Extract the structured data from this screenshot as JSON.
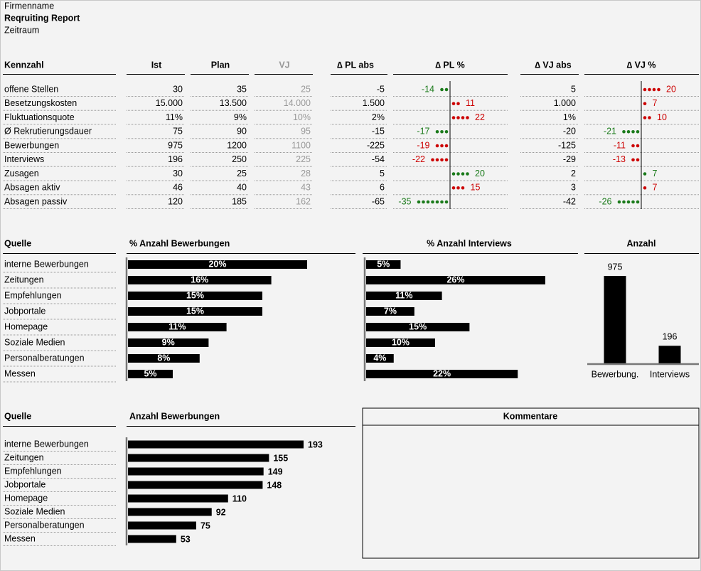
{
  "header": {
    "company": "Firmenname",
    "title": "Reqruiting Report",
    "period": "Zeitraum"
  },
  "kpi": {
    "columns": [
      "Kennzahl",
      "Ist",
      "Plan",
      "VJ",
      "∆ PL abs",
      "∆ PL %",
      "∆ VJ abs",
      "∆ VJ %"
    ],
    "rows": [
      {
        "name": "offene Stellen",
        "ist": "30",
        "plan": "35",
        "vj": "25",
        "pl_abs": "-5",
        "pl_pct": -14,
        "pl_color": "#1a7a1a",
        "vj_abs": "5",
        "vj_pct": 20,
        "vj_color": "#cc0000"
      },
      {
        "name": "Besetzungskosten",
        "ist": "15.000",
        "plan": "13.500",
        "vj": "14.000",
        "pl_abs": "1.500",
        "pl_pct": 11,
        "pl_color": "#cc0000",
        "vj_abs": "1.000",
        "vj_pct": 7,
        "vj_color": "#cc0000"
      },
      {
        "name": "Fluktuationsquote",
        "ist": "11%",
        "plan": "9%",
        "vj": "10%",
        "pl_abs": "2%",
        "pl_pct": 22,
        "pl_color": "#cc0000",
        "vj_abs": "1%",
        "vj_pct": 10,
        "vj_color": "#cc0000"
      },
      {
        "name": "Ø Rekrutierungsdauer",
        "ist": "75",
        "plan": "90",
        "vj": "95",
        "pl_abs": "-15",
        "pl_pct": -17,
        "pl_color": "#1a7a1a",
        "vj_abs": "-20",
        "vj_pct": -21,
        "vj_color": "#1a7a1a"
      },
      {
        "name": "Bewerbungen",
        "ist": "975",
        "plan": "1200",
        "vj": "1100",
        "pl_abs": "-225",
        "pl_pct": -19,
        "pl_color": "#cc0000",
        "vj_abs": "-125",
        "vj_pct": -11,
        "vj_color": "#cc0000"
      },
      {
        "name": "Interviews",
        "ist": "196",
        "plan": "250",
        "vj": "225",
        "pl_abs": "-54",
        "pl_pct": -22,
        "pl_color": "#cc0000",
        "vj_abs": "-29",
        "vj_pct": -13,
        "vj_color": "#cc0000"
      },
      {
        "name": "Zusagen",
        "ist": "30",
        "plan": "25",
        "vj": "28",
        "pl_abs": "5",
        "pl_pct": 20,
        "pl_color": "#1a7a1a",
        "vj_abs": "2",
        "vj_pct": 7,
        "vj_color": "#1a7a1a"
      },
      {
        "name": "Absagen aktiv",
        "ist": "46",
        "plan": "40",
        "vj": "43",
        "pl_abs": "6",
        "pl_pct": 15,
        "pl_color": "#cc0000",
        "vj_abs": "3",
        "vj_pct": 7,
        "vj_color": "#cc0000"
      },
      {
        "name": "Absagen passiv",
        "ist": "120",
        "plan": "185",
        "vj": "162",
        "pl_abs": "-65",
        "pl_pct": -35,
        "pl_color": "#1a7a1a",
        "vj_abs": "-42",
        "vj_pct": -26,
        "vj_color": "#1a7a1a"
      }
    ]
  },
  "sources": {
    "header": "Quelle",
    "categories": [
      "interne Bewerbungen",
      "Zeitungen",
      "Empfehlungen",
      "Jobportale",
      "Homepage",
      "Soziale Medien",
      "Personalberatungen",
      "Messen"
    ]
  },
  "pct_applications": {
    "title": "% Anzahl Bewerbungen",
    "values": [
      20,
      16,
      15,
      15,
      11,
      9,
      8,
      5
    ],
    "value_labels": [
      "20%",
      "16%",
      "15%",
      "15%",
      "11%",
      "9%",
      "8%",
      "5%"
    ]
  },
  "pct_interviews": {
    "title": "% Anzahl Interviews",
    "values": [
      5,
      26,
      11,
      7,
      15,
      10,
      4,
      22
    ],
    "value_labels": [
      "5%",
      "26%",
      "11%",
      "7%",
      "15%",
      "10%",
      "4%",
      "22%"
    ]
  },
  "counts": {
    "title": "Anzahl",
    "categories": [
      "Bewerbung.",
      "Interviews"
    ],
    "values": [
      975,
      196
    ]
  },
  "applications": {
    "source_header": "Quelle",
    "title": "Anzahl Bewerbungen",
    "categories": [
      "interne Bewerbungen",
      "Zeitungen",
      "Empfehlungen",
      "Jobportale",
      "Homepage",
      "Soziale Medien",
      "Personalberatungen",
      "Messen"
    ],
    "values": [
      193,
      155,
      149,
      148,
      110,
      92,
      75,
      53
    ]
  },
  "comments": {
    "title": "Kommentare"
  }
}
